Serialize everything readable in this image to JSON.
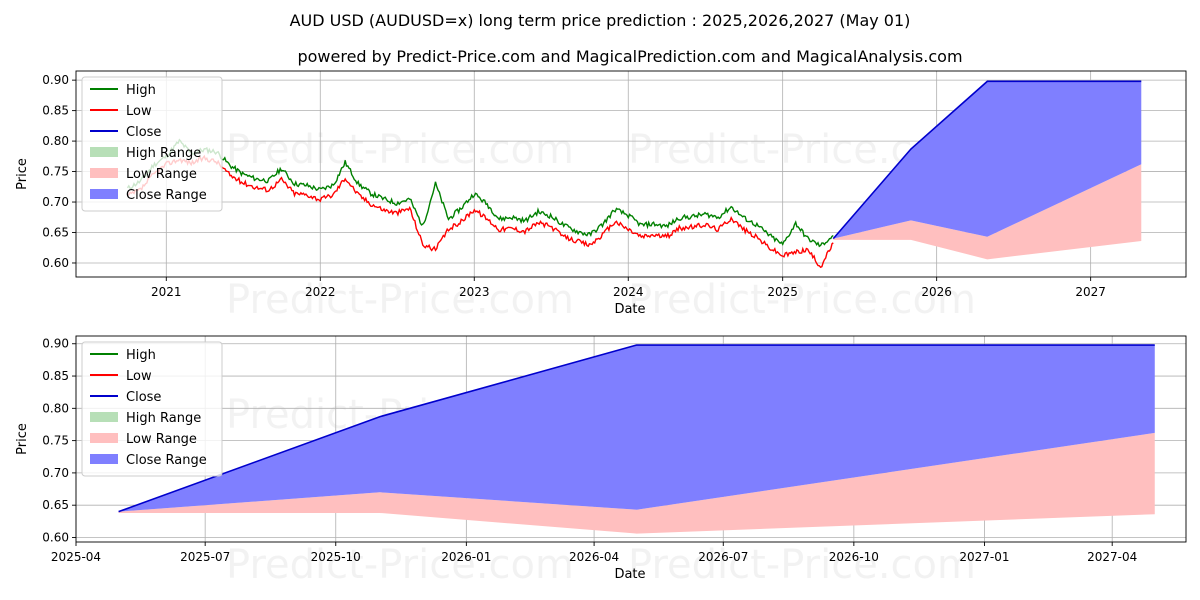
{
  "header": {
    "title": "AUD USD (AUDUSD=x) long term price prediction : 2025,2026,2027 (May 01)",
    "subtitle": "powered by Predict-Price.com and MagicalPrediction.com and MagicalAnalysis.com"
  },
  "watermark": "Predict-Price.com",
  "legend": {
    "placement": "upper-left",
    "items": [
      "High",
      "Low",
      "Close",
      "High Range",
      "Low Range",
      "Close Range"
    ]
  },
  "colors": {
    "high": "#008000",
    "low": "#ff0000",
    "close": "#0000cc",
    "high_range": "#b7dfb7",
    "low_range": "#ffbfbf",
    "close_range": "#7f7fff",
    "grid": "#b0b0b0"
  },
  "chart_data": [
    {
      "type": "line",
      "xlabel": "Date",
      "ylabel": "Price",
      "xlim": [
        "2020-06-01",
        "2027-08-15"
      ],
      "ylim": [
        0.577,
        0.915
      ],
      "x_ticks": [
        "2021",
        "2022",
        "2023",
        "2024",
        "2025",
        "2026",
        "2027"
      ],
      "y_ticks": [
        "0.60",
        "0.65",
        "0.70",
        "0.75",
        "0.80",
        "0.85",
        "0.90"
      ],
      "grid": true,
      "history": {
        "dates": [
          "2020-10-01",
          "2020-11-01",
          "2020-12-01",
          "2021-01-01",
          "2021-02-01",
          "2021-03-01",
          "2021-04-01",
          "2021-05-01",
          "2021-06-01",
          "2021-07-01",
          "2021-08-01",
          "2021-09-01",
          "2021-10-01",
          "2021-11-01",
          "2021-12-01",
          "2022-01-01",
          "2022-02-01",
          "2022-03-01",
          "2022-04-01",
          "2022-05-01",
          "2022-06-01",
          "2022-07-01",
          "2022-08-01",
          "2022-09-01",
          "2022-10-01",
          "2022-11-01",
          "2022-12-01",
          "2023-01-01",
          "2023-02-01",
          "2023-03-01",
          "2023-04-01",
          "2023-05-01",
          "2023-06-01",
          "2023-07-01",
          "2023-08-01",
          "2023-09-01",
          "2023-10-01",
          "2023-11-01",
          "2023-12-01",
          "2024-01-01",
          "2024-02-01",
          "2024-03-01",
          "2024-04-01",
          "2024-05-01",
          "2024-06-01",
          "2024-07-01",
          "2024-08-01",
          "2024-09-01",
          "2024-10-01",
          "2024-11-01",
          "2024-12-01",
          "2025-01-01",
          "2025-02-01",
          "2025-03-01",
          "2025-04-01",
          "2025-05-01"
        ],
        "close": [
          0.716,
          0.728,
          0.752,
          0.77,
          0.776,
          0.772,
          0.779,
          0.774,
          0.752,
          0.74,
          0.732,
          0.728,
          0.745,
          0.722,
          0.72,
          0.712,
          0.72,
          0.749,
          0.722,
          0.705,
          0.696,
          0.69,
          0.698,
          0.646,
          0.638,
          0.664,
          0.678,
          0.698,
          0.682,
          0.664,
          0.667,
          0.661,
          0.676,
          0.669,
          0.652,
          0.645,
          0.638,
          0.655,
          0.678,
          0.664,
          0.652,
          0.655,
          0.652,
          0.666,
          0.668,
          0.672,
          0.665,
          0.683,
          0.665,
          0.652,
          0.636,
          0.622,
          0.627,
          0.632,
          0.616,
          0.64
        ],
        "high": [
          0.722,
          0.734,
          0.76,
          0.775,
          0.8,
          0.78,
          0.786,
          0.782,
          0.76,
          0.746,
          0.738,
          0.735,
          0.755,
          0.73,
          0.727,
          0.72,
          0.728,
          0.765,
          0.73,
          0.714,
          0.705,
          0.698,
          0.705,
          0.66,
          0.73,
          0.672,
          0.69,
          0.714,
          0.696,
          0.672,
          0.675,
          0.669,
          0.684,
          0.677,
          0.662,
          0.652,
          0.646,
          0.663,
          0.688,
          0.678,
          0.662,
          0.664,
          0.66,
          0.674,
          0.676,
          0.68,
          0.675,
          0.692,
          0.674,
          0.662,
          0.645,
          0.63,
          0.665,
          0.64,
          0.628,
          0.645
        ],
        "low": [
          0.71,
          0.72,
          0.745,
          0.762,
          0.77,
          0.764,
          0.772,
          0.766,
          0.744,
          0.732,
          0.724,
          0.72,
          0.737,
          0.714,
          0.712,
          0.704,
          0.712,
          0.74,
          0.712,
          0.697,
          0.687,
          0.682,
          0.69,
          0.63,
          0.622,
          0.655,
          0.668,
          0.688,
          0.672,
          0.655,
          0.657,
          0.652,
          0.666,
          0.66,
          0.643,
          0.636,
          0.629,
          0.646,
          0.668,
          0.655,
          0.643,
          0.646,
          0.643,
          0.657,
          0.659,
          0.663,
          0.655,
          0.674,
          0.655,
          0.642,
          0.625,
          0.612,
          0.618,
          0.622,
          0.594,
          0.633
        ]
      }
    },
    {
      "type": "area",
      "xlabel": "Date",
      "ylabel": "Price",
      "xlim": [
        "2025-04-01",
        "2027-05-23"
      ],
      "ylim": [
        0.593,
        0.912
      ],
      "x_ticks": [
        "2025-04",
        "2025-07",
        "2025-10",
        "2026-01",
        "2026-04",
        "2026-07",
        "2026-10",
        "2027-01",
        "2027-04"
      ],
      "y_ticks": [
        "0.60",
        "0.65",
        "0.70",
        "0.75",
        "0.80",
        "0.85",
        "0.90"
      ],
      "grid": true,
      "forecast": {
        "dates": [
          "2025-05-01",
          "2025-11-01",
          "2026-05-01",
          "2027-05-01"
        ],
        "close_upper": [
          0.64,
          0.787,
          0.898,
          0.898
        ],
        "close_lower": [
          0.64,
          0.67,
          0.643,
          0.762
        ],
        "low_upper": [
          0.64,
          0.67,
          0.643,
          0.762
        ],
        "low_lower": [
          0.638,
          0.638,
          0.606,
          0.636
        ]
      }
    }
  ]
}
